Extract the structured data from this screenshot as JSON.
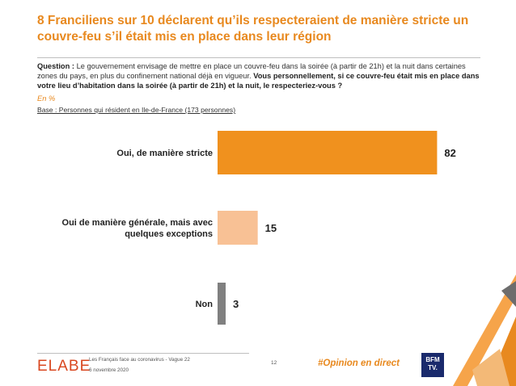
{
  "header": {
    "title": "8 Franciliens sur 10 déclarent qu’ils respecteraient de manière stricte un couvre-feu s’il était mis en place dans leur région"
  },
  "question": {
    "label": "Question :",
    "text": "Le gouvernement envisage de mettre en place un couvre-feu dans la soirée (à partir de 21h) et la nuit dans certaines zones du pays, en plus du confinement national déjà en vigueur.",
    "emphasis": "Vous personnellement, si ce couvre-feu était mis en place dans votre lieu d’habitation dans la soirée (à partir de 21h) et la nuit, le respecteriez-vous ?"
  },
  "unit_note": "En %",
  "base_note": "Base : Personnes qui résident en Ile-de-France (173 personnes)",
  "chart_data": {
    "type": "bar",
    "orientation": "horizontal",
    "categories": [
      "Oui, de manière stricte",
      "Oui de manière générale, mais avec quelques exceptions",
      "Non"
    ],
    "values": [
      82,
      15,
      3
    ],
    "colors": [
      "#f0911e",
      "#f8c195",
      "#808080"
    ],
    "xlim": [
      0,
      100
    ],
    "grid": false,
    "legend": "none"
  },
  "footer": {
    "logo": "ELABE",
    "study": "Les Français face au coronavirus - Vague 22",
    "date": "6 novembre 2020",
    "page": "12",
    "hashtag": "#Opinion en direct",
    "partner_logo_top": "BFM",
    "partner_logo_bottom": "TV."
  },
  "colors": {
    "accent": "#e8891f",
    "brand_red": "#d9471f",
    "partner_blue": "#1a2a6c"
  }
}
